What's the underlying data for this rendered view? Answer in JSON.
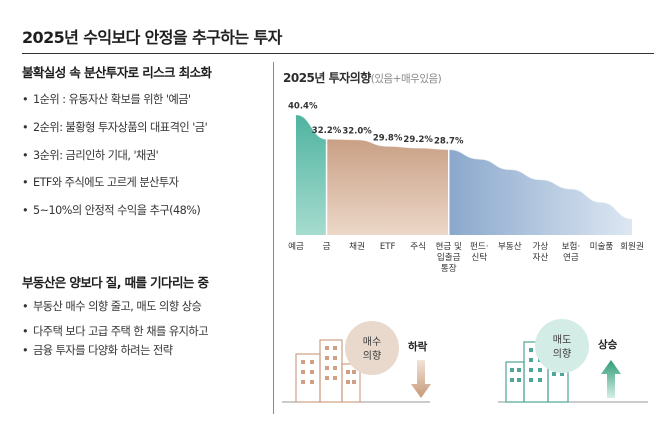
{
  "header": {
    "title": "2025년 수익보다 안정을 추구하는 투자"
  },
  "section1": {
    "heading": "불확실성 속 분산투자로 리스크 최소화",
    "bullets": [
      "1순위 : 유동자산 확보를 위한 '예금'",
      "2순위: 불황형 투자상품의 대표격인 '금'",
      "3순위: 금리인하 기대, '채권'",
      "ETF와 주식에도 고르게 분산투자",
      "5~10%의 안정적 수익을 추구(48%)"
    ]
  },
  "section2": {
    "heading": "부동산은 양보다 질, 때를 기다리는 중",
    "bullets": [
      "부동산 매수 의향 줄고, 매도 의향 상승",
      "다주택 보다 고급 주택 한 채를 유지하고",
      "금융 투자를 다양화 하려는 전략"
    ]
  },
  "chart_heading": {
    "title": "2025년 투자의향",
    "subtitle": "(있음+매우있음)"
  },
  "chart_data": {
    "type": "area",
    "title": "2025년 투자의향",
    "subtitle": "(있음+매우있음)",
    "unit": "%",
    "categories": [
      [
        "예금"
      ],
      [
        "금"
      ],
      [
        "채권"
      ],
      [
        "ETF"
      ],
      [
        "주식"
      ],
      [
        "현금 및",
        "입출금",
        "통장"
      ],
      [
        "펀드·",
        "신탁"
      ],
      [
        "부동산"
      ],
      [
        "가상",
        "자산"
      ],
      [
        "보험·",
        "연금"
      ],
      [
        "미술품"
      ],
      [
        "회원권"
      ]
    ],
    "values": [
      40.4,
      32.2,
      32.0,
      29.8,
      29.2,
      28.7,
      25.5,
      22.0,
      18.6,
      15.5,
      11.0,
      5.5
    ],
    "labels": [
      "40.4%",
      "32.2%",
      "32.0%",
      "29.8%",
      "29.2%",
      "28.7%",
      null,
      null,
      null,
      null,
      null,
      null
    ],
    "ylim": [
      0,
      45
    ],
    "segment_colors": [
      "#4fb3a0",
      "#c9a085",
      "#9cb4d0"
    ],
    "label_color": "#333333",
    "grid": false,
    "legend": "none"
  },
  "illustration": {
    "buy": {
      "label_lines": [
        "매수",
        "의향"
      ],
      "trend": "하락",
      "arrow": "down",
      "circle_color": "#e8d9cc",
      "arrow_color": "#c69a78"
    },
    "sell": {
      "label_lines": [
        "매도",
        "의향"
      ],
      "trend": "상승",
      "arrow": "up",
      "circle_color": "#d4ece6",
      "arrow_color": "#2e9b78"
    }
  }
}
